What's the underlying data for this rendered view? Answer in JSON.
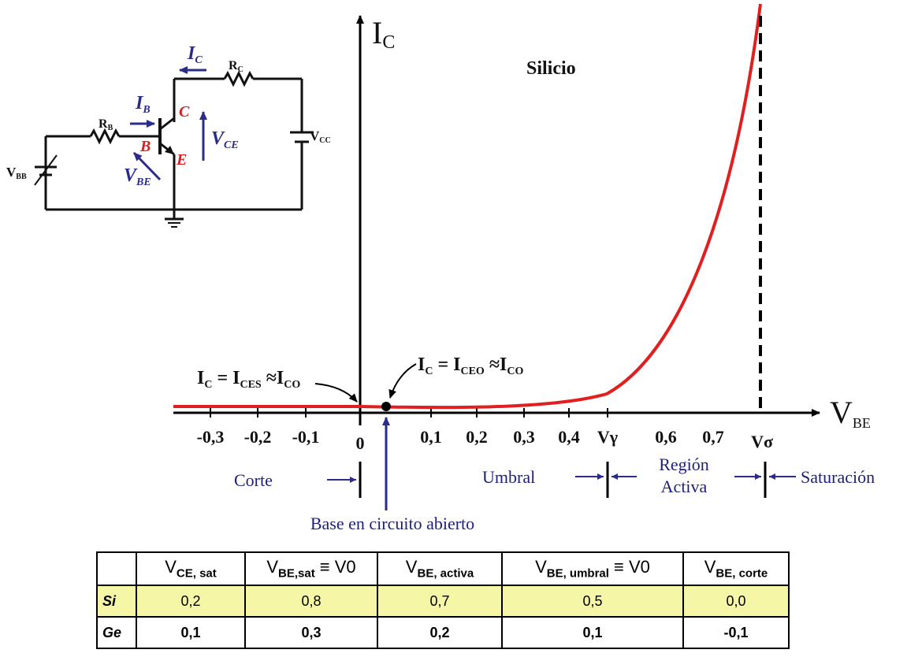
{
  "material_label": "Silicio",
  "axes": {
    "y_label_main": "I",
    "y_label_sub": "C",
    "x_label_main": "V",
    "x_label_sub": "BE"
  },
  "ticks": [
    "-0,3",
    "-0,2",
    "-0,1",
    "0",
    "0,1",
    "0,2",
    "0,3",
    "0,4",
    "Vγ",
    "0,6",
    "0,7",
    "Vσ"
  ],
  "annotations": {
    "ices": {
      "a": "I",
      "a_sub": "C",
      "b": " = I",
      "b_sub": "CES",
      "c": " ≈I",
      "c_sub": "CO"
    },
    "iceo": {
      "a": "I",
      "a_sub": "C",
      "b": " = I",
      "b_sub": "CEO",
      "c": " ≈I",
      "c_sub": "CO"
    },
    "open_base": "Base en circuito abierto"
  },
  "regions": {
    "corte": "Corte",
    "umbral": "Umbral",
    "activa_1": "Región",
    "activa_2": "Activa",
    "saturacion": "Saturación"
  },
  "circuit": {
    "ic": "I",
    "ic_sub": "C",
    "ib": "I",
    "ib_sub": "B",
    "rc": "R",
    "rc_sub": "C",
    "rb": "R",
    "rb_sub": "B",
    "vcc": "V",
    "vcc_sub": "CC",
    "vbb": "V",
    "vbb_sub": "BB",
    "vce": "V",
    "vce_sub": "CE",
    "vbe": "V",
    "vbe_sub": "BE",
    "b": "B",
    "c": "C",
    "e": "E"
  },
  "table": {
    "headers": [
      {
        "main": "V",
        "sub": "CE, sat",
        "suffix": ""
      },
      {
        "main": "V",
        "sub": "BE,sat",
        "suffix": " ≡ V0"
      },
      {
        "main": "V",
        "sub": "BE, activa",
        "suffix": ""
      },
      {
        "main": "V",
        "sub": "BE, umbral",
        "suffix": " ≡ V0"
      },
      {
        "main": "V",
        "sub": "BE, corte",
        "suffix": ""
      }
    ],
    "rows": [
      {
        "material": "Si",
        "values": [
          "0,2",
          "0,8",
          "0,7",
          "0,5",
          "0,0"
        ]
      },
      {
        "material": "Ge",
        "values": [
          "0,1",
          "0,3",
          "0,2",
          "0,1",
          "-0,1"
        ]
      }
    ]
  },
  "colors": {
    "curve": "#e02020",
    "region_text": "#1f1f7a",
    "si_row": "#f6f7a6"
  }
}
